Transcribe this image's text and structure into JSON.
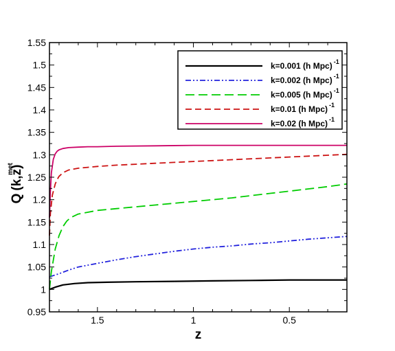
{
  "chart_data": {
    "type": "line",
    "xlabel": "z",
    "ylabel": "Q",
    "ylabel_sup": "met",
    "ylabel_args": "(k,z)",
    "xlim": [
      1.75,
      0.2
    ],
    "ylim": [
      0.95,
      1.55
    ],
    "x_reversed": true,
    "grid": false,
    "legend_position": "top-right",
    "x_ticks": [
      1.5,
      1,
      0.5
    ],
    "x_tick_labels": [
      "1.5",
      "1",
      "0.5"
    ],
    "y_ticks": [
      0.95,
      1,
      1.05,
      1.1,
      1.15,
      1.2,
      1.25,
      1.3,
      1.35,
      1.4,
      1.45,
      1.5,
      1.55
    ],
    "y_tick_labels": [
      "0.95",
      "1",
      "1.05",
      "1.1",
      "1.15",
      "1.2",
      "1.25",
      "1.3",
      "1.35",
      "1.4",
      "1.45",
      "1.5",
      "1.55"
    ],
    "series": [
      {
        "name": "k=0.001 (h Mpc)",
        "name_sup": "-1",
        "color": "#000000",
        "dash": "",
        "x": [
          1.75,
          1.72,
          1.68,
          1.62,
          1.55,
          1.45,
          1.3,
          1.1,
          0.9,
          0.7,
          0.5,
          0.35,
          0.2
        ],
        "y": [
          1.0,
          1.005,
          1.01,
          1.013,
          1.015,
          1.016,
          1.017,
          1.018,
          1.019,
          1.02,
          1.021,
          1.021,
          1.021
        ]
      },
      {
        "name": "k=0.002 (h Mpc)",
        "name_sup": "-1",
        "color": "#2222dd",
        "dash": "8,3,2,3,2,3",
        "x": [
          1.75,
          1.7,
          1.65,
          1.6,
          1.5,
          1.4,
          1.3,
          1.2,
          1.1,
          1.0,
          0.9,
          0.8,
          0.7,
          0.6,
          0.5,
          0.4,
          0.3,
          0.2
        ],
        "y": [
          1.028,
          1.035,
          1.043,
          1.05,
          1.058,
          1.066,
          1.073,
          1.079,
          1.085,
          1.09,
          1.094,
          1.097,
          1.101,
          1.104,
          1.108,
          1.112,
          1.115,
          1.118
        ]
      },
      {
        "name": "k=0.005 (h Mpc)",
        "name_sup": "-1",
        "color": "#00cc00",
        "dash": "13,6",
        "x": [
          1.75,
          1.74,
          1.72,
          1.7,
          1.68,
          1.66,
          1.64,
          1.6,
          1.55,
          1.5,
          1.4,
          1.3,
          1.2,
          1.1,
          1.0,
          0.9,
          0.8,
          0.7,
          0.6,
          0.5,
          0.4,
          0.3,
          0.2
        ],
        "y": [
          1.0,
          1.04,
          1.09,
          1.12,
          1.14,
          1.152,
          1.16,
          1.168,
          1.172,
          1.176,
          1.18,
          1.184,
          1.188,
          1.192,
          1.196,
          1.2,
          1.204,
          1.209,
          1.214,
          1.219,
          1.224,
          1.229,
          1.235
        ]
      },
      {
        "name": "k=0.01 (h Mpc)",
        "name_sup": "-1",
        "color": "#cc1111",
        "dash": "9,5",
        "x": [
          1.75,
          1.745,
          1.735,
          1.72,
          1.71,
          1.7,
          1.68,
          1.65,
          1.6,
          1.55,
          1.5,
          1.4,
          1.3,
          1.2,
          1.1,
          1.0,
          0.9,
          0.8,
          0.7,
          0.6,
          0.5,
          0.4,
          0.3,
          0.2
        ],
        "y": [
          1.12,
          1.17,
          1.21,
          1.235,
          1.245,
          1.252,
          1.26,
          1.266,
          1.27,
          1.272,
          1.274,
          1.277,
          1.279,
          1.281,
          1.283,
          1.285,
          1.287,
          1.289,
          1.291,
          1.293,
          1.295,
          1.297,
          1.299,
          1.301
        ]
      },
      {
        "name": "k=0.02 (h Mpc)",
        "name_sup": "-1",
        "color": "#cc0066",
        "dash": "",
        "x": [
          1.75,
          1.745,
          1.74,
          1.73,
          1.72,
          1.71,
          1.7,
          1.68,
          1.65,
          1.6,
          1.55,
          1.5,
          1.4,
          1.2,
          1.0,
          0.8,
          0.6,
          0.4,
          0.2
        ],
        "y": [
          1.16,
          1.22,
          1.26,
          1.29,
          1.302,
          1.308,
          1.311,
          1.314,
          1.316,
          1.317,
          1.318,
          1.318,
          1.319,
          1.32,
          1.321,
          1.321,
          1.321,
          1.321,
          1.321
        ]
      }
    ]
  }
}
